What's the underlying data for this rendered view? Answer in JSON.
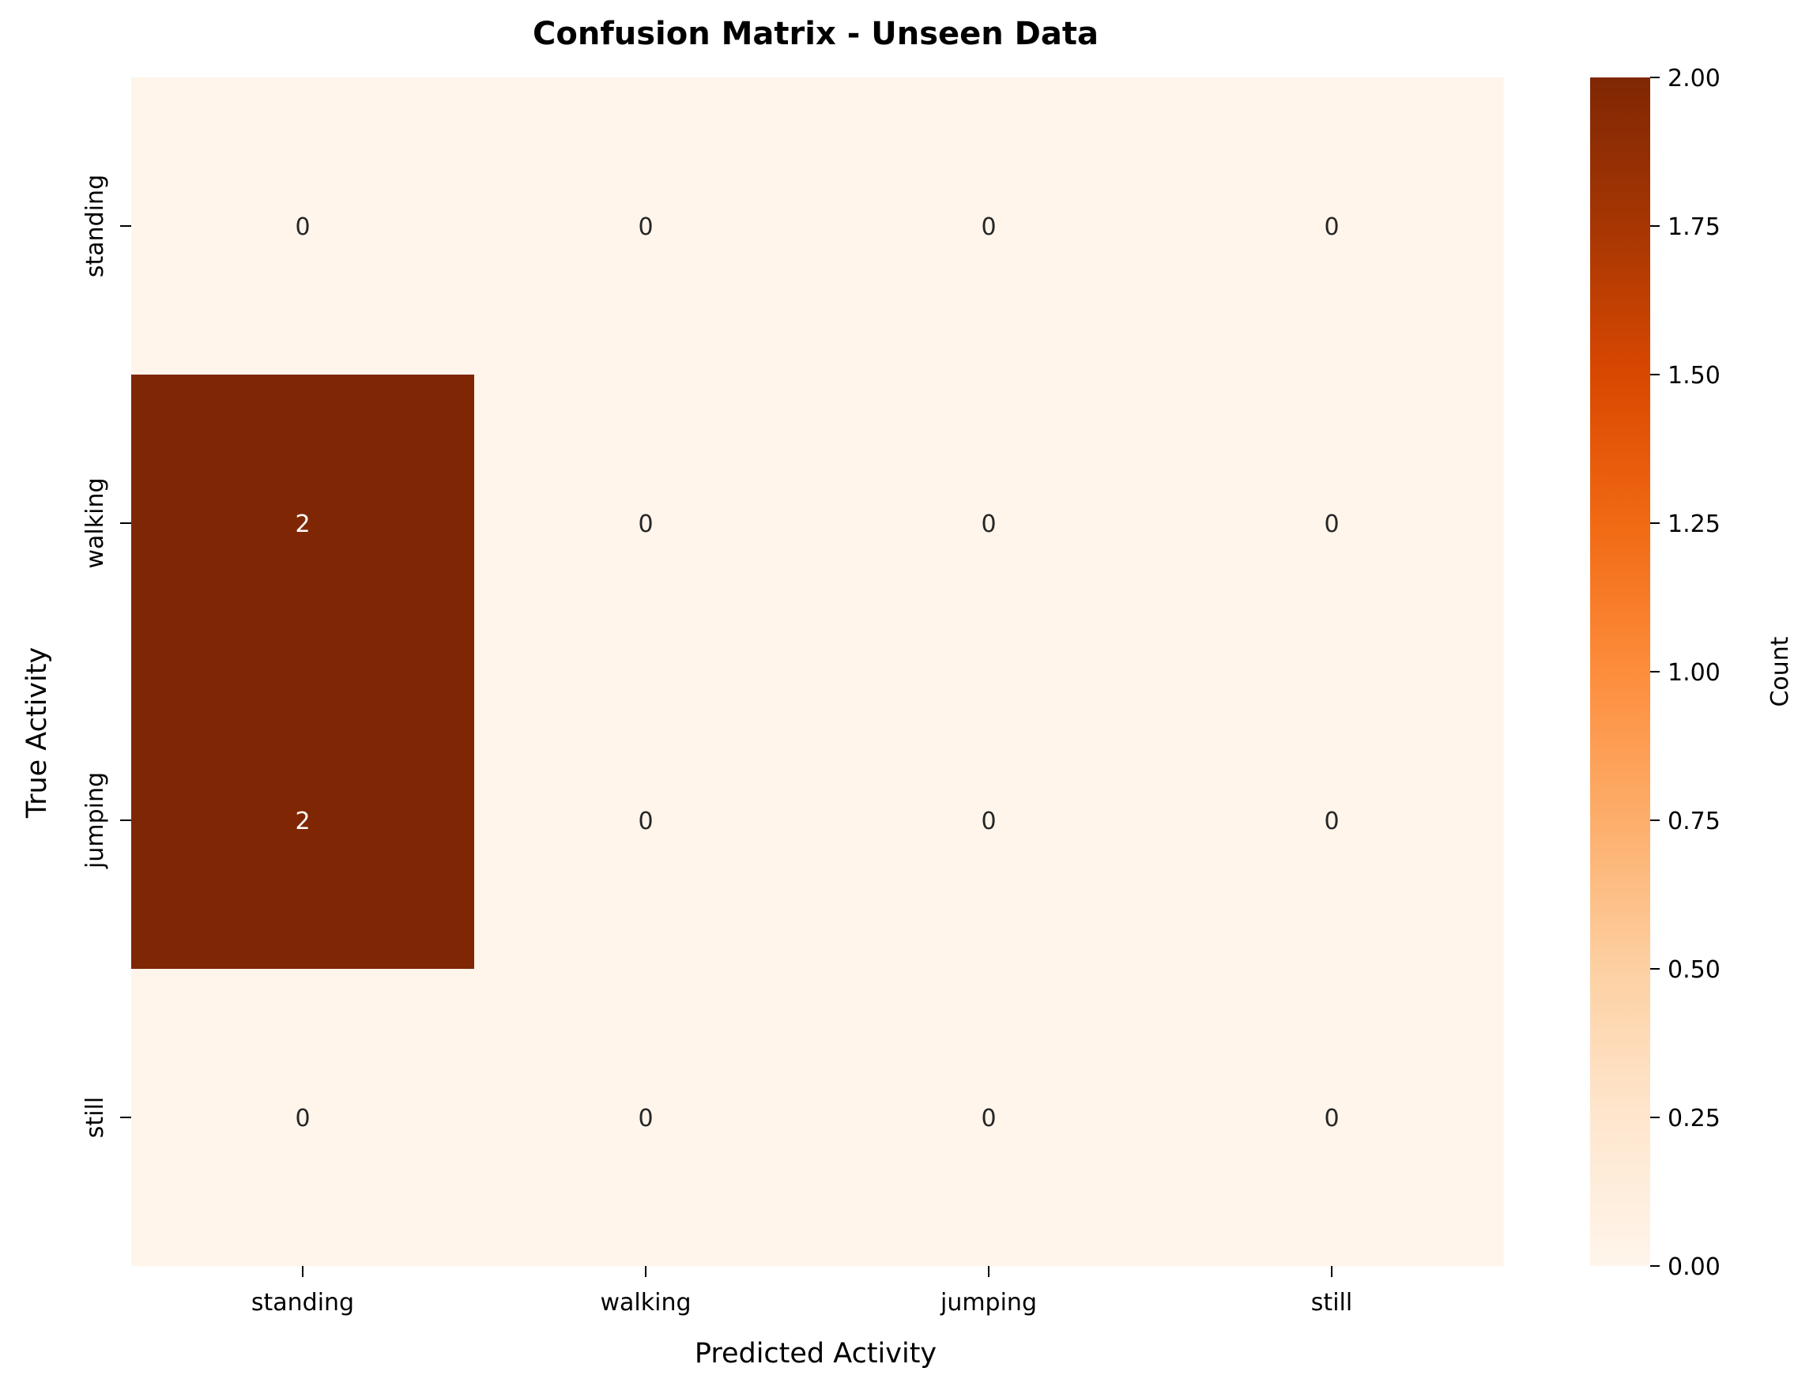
{
  "chart_data": {
    "type": "heatmap",
    "title": "Confusion Matrix - Unseen Data",
    "xlabel": "Predicted Activity",
    "ylabel": "True Activity",
    "x_categories": [
      "standing",
      "walking",
      "jumping",
      "still"
    ],
    "y_categories": [
      "standing",
      "walking",
      "jumping",
      "still"
    ],
    "values": [
      [
        0,
        0,
        0,
        0
      ],
      [
        2,
        0,
        0,
        0
      ],
      [
        2,
        0,
        0,
        0
      ],
      [
        0,
        0,
        0,
        0
      ]
    ],
    "colorbar": {
      "label": "Count",
      "range": [
        0,
        2
      ],
      "ticks": [
        "0.00",
        "0.25",
        "0.50",
        "0.75",
        "1.00",
        "1.25",
        "1.50",
        "1.75",
        "2.00"
      ],
      "colormap": "Oranges",
      "low_color": "#fff5eb",
      "high_color": "#7f2704"
    },
    "annotations": true
  }
}
